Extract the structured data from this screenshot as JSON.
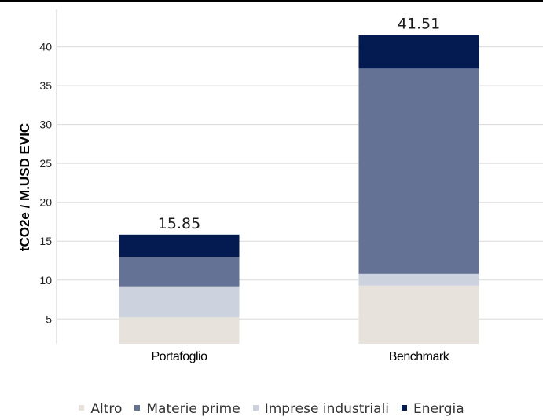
{
  "chart_data": {
    "type": "bar",
    "stacked": true,
    "ylabel": "tCO2e / M.USD EVIC",
    "yticks": [
      5,
      10,
      15,
      20,
      25,
      30,
      35,
      40
    ],
    "ylim": [
      1.8,
      44.5
    ],
    "grid": true,
    "categories": [
      "Portafoglio",
      "Benchmark"
    ],
    "series": [
      {
        "name": "Altro",
        "color": "#e7e3dc",
        "values": [
          5.2,
          9.3
        ]
      },
      {
        "name": "Imprese industriali",
        "color": "#ccd2de",
        "values": [
          4.0,
          1.5
        ]
      },
      {
        "name": "Materie prime",
        "color": "#647395",
        "values": [
          3.8,
          26.4
        ]
      },
      {
        "name": "Energia",
        "color": "#041b52",
        "values": [
          2.85,
          4.31
        ]
      }
    ],
    "totals": [
      "15.85",
      "41.51"
    ],
    "legend": {
      "position": "bottom",
      "order": [
        "Altro",
        "Materie prime",
        "Imprese industriali",
        "Energia"
      ]
    }
  }
}
